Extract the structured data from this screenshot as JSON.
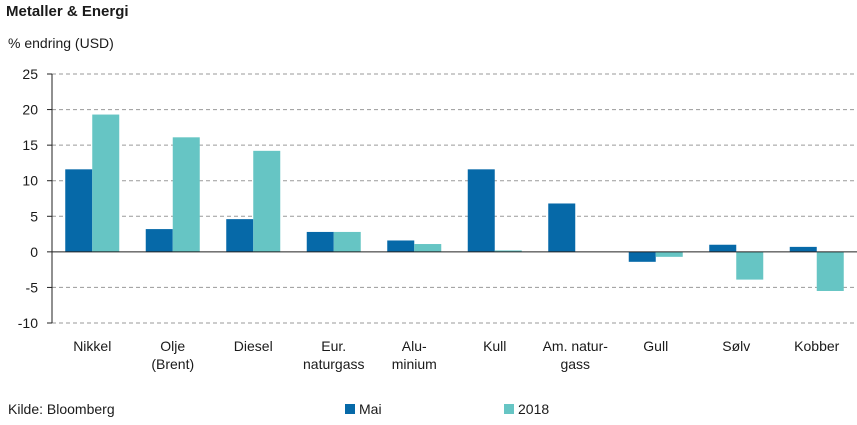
{
  "title": "Metaller & Energi",
  "subtitle": "% endring (USD)",
  "source": "Kilde: Bloomberg",
  "colors": {
    "mai": "#0669a8",
    "y2018": "#66c5c4",
    "grid": "#9a9a9a",
    "axis": "#222222"
  },
  "chart_data": {
    "type": "bar",
    "categories": [
      [
        "Nikkel"
      ],
      [
        "Olje",
        "(Brent)"
      ],
      [
        "Diesel"
      ],
      [
        "Eur.",
        "naturgass"
      ],
      [
        "Alu-",
        "minium"
      ],
      [
        "Kull"
      ],
      [
        "Am. natur-",
        "gass"
      ],
      [
        "Gull"
      ],
      [
        "Sølv"
      ],
      [
        "Kobber"
      ]
    ],
    "series": [
      {
        "name": "Mai",
        "values": [
          11.6,
          3.2,
          4.6,
          2.8,
          1.6,
          11.6,
          6.8,
          -1.4,
          1.0,
          0.7
        ]
      },
      {
        "name": "2018",
        "values": [
          19.3,
          16.1,
          14.2,
          2.8,
          1.1,
          0.2,
          0.0,
          -0.7,
          -3.9,
          -5.5
        ]
      }
    ],
    "ylim": [
      -10,
      25
    ],
    "yticks": [
      25,
      20,
      15,
      10,
      5,
      0,
      -5,
      -10
    ],
    "grid": true,
    "legend_position": "bottom"
  }
}
